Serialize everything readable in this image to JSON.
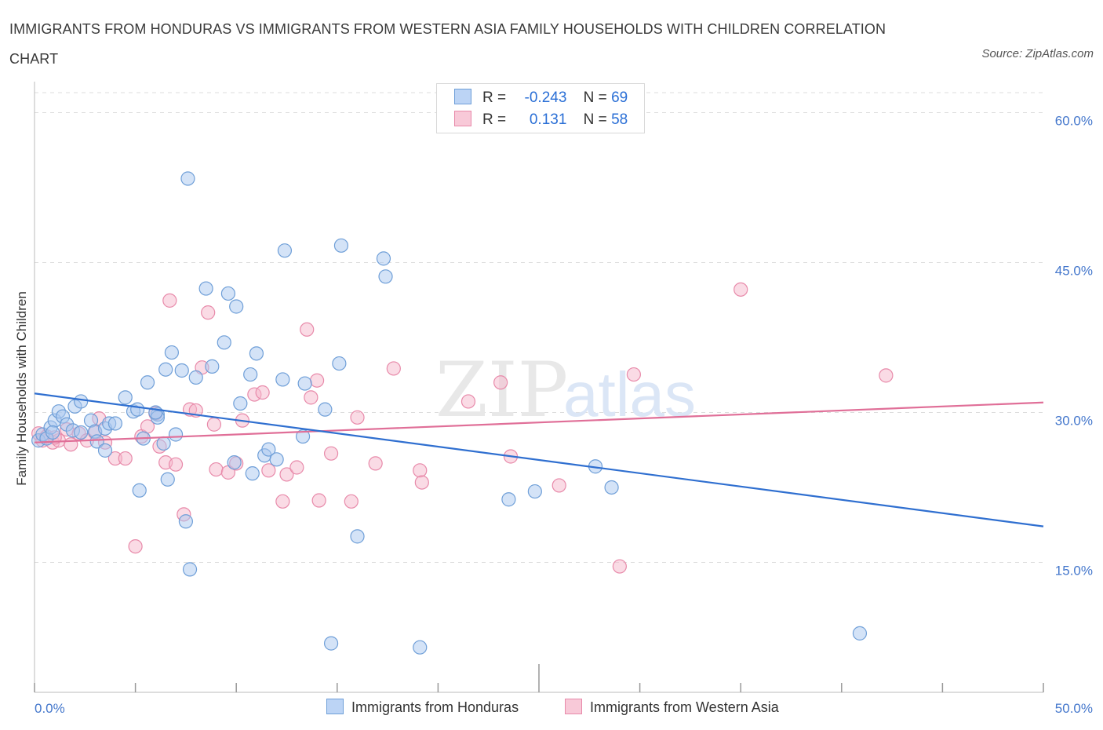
{
  "title": "IMMIGRANTS FROM HONDURAS VS IMMIGRANTS FROM WESTERN ASIA FAMILY HOUSEHOLDS WITH CHILDREN CORRELATION CHART",
  "source": "Source: ZipAtlas.com",
  "watermark": {
    "zip": "ZIP",
    "atlas": "atlas"
  },
  "legend": {
    "rows": [
      {
        "r_label": "R =",
        "r_value": "-0.243",
        "n_label": "N =",
        "n_value": "69"
      },
      {
        "r_label": "R =",
        "r_value": "0.131",
        "n_label": "N =",
        "n_value": "58"
      }
    ]
  },
  "bottom_legend": [
    "Immigrants from Honduras",
    "Immigrants from Western Asia"
  ],
  "colors": {
    "blue_fill": "#a9c8f0",
    "blue_stroke": "#6f9fd8",
    "blue_line": "#2f6fd0",
    "pink_fill": "#f5b8cc",
    "pink_stroke": "#e88aaa",
    "pink_line": "#e06f98",
    "tick_text": "#4477cc",
    "grid": "#dddddd"
  },
  "chart_data": {
    "type": "scatter",
    "title": "IMMIGRANTS FROM HONDURAS VS IMMIGRANTS FROM WESTERN ASIA FAMILY HOUSEHOLDS WITH CHILDREN CORRELATION CHART",
    "xlabel": "",
    "ylabel": "Family Households with Children",
    "xlim": [
      0,
      50
    ],
    "ylim": [
      2,
      62
    ],
    "x_tick_labels": [
      "0.0%",
      "50.0%"
    ],
    "y_ticks": [
      15,
      30,
      45,
      60
    ],
    "y_tick_labels": [
      "15.0%",
      "30.0%",
      "45.0%",
      "60.0%"
    ],
    "grid": true,
    "legend_position": "top-center",
    "series": [
      {
        "name": "Immigrants from Honduras",
        "color": "#a9c8f0",
        "R": -0.243,
        "N": 69,
        "trend": {
          "x": [
            0,
            50
          ],
          "y": [
            31.9,
            18.6
          ]
        },
        "points": [
          [
            0.2,
            27.2
          ],
          [
            0.4,
            27.8
          ],
          [
            0.6,
            27.4
          ],
          [
            0.8,
            28.5
          ],
          [
            1.0,
            29.2
          ],
          [
            1.2,
            30.1
          ],
          [
            1.4,
            29.6
          ],
          [
            1.6,
            28.8
          ],
          [
            2.0,
            30.6
          ],
          [
            2.3,
            31.1
          ],
          [
            2.8,
            29.2
          ],
          [
            3.0,
            28.1
          ],
          [
            3.5,
            28.4
          ],
          [
            3.7,
            28.9
          ],
          [
            4.5,
            31.5
          ],
          [
            4.9,
            30.1
          ],
          [
            5.1,
            30.3
          ],
          [
            5.4,
            27.4
          ],
          [
            5.6,
            33.0
          ],
          [
            6.1,
            29.8
          ],
          [
            6.1,
            29.5
          ],
          [
            6.4,
            26.9
          ],
          [
            6.5,
            34.3
          ],
          [
            6.6,
            23.3
          ],
          [
            6.8,
            36.0
          ],
          [
            7.3,
            34.2
          ],
          [
            7.5,
            19.1
          ],
          [
            7.6,
            53.4
          ],
          [
            7.7,
            14.3
          ],
          [
            8.0,
            33.5
          ],
          [
            8.5,
            42.4
          ],
          [
            8.8,
            34.6
          ],
          [
            9.4,
            37.0
          ],
          [
            9.6,
            41.9
          ],
          [
            9.9,
            25.0
          ],
          [
            10.0,
            40.6
          ],
          [
            10.2,
            30.9
          ],
          [
            10.7,
            33.8
          ],
          [
            10.8,
            23.9
          ],
          [
            11.0,
            35.9
          ],
          [
            11.4,
            25.7
          ],
          [
            11.6,
            26.3
          ],
          [
            12.0,
            25.3
          ],
          [
            12.3,
            33.3
          ],
          [
            12.4,
            46.2
          ],
          [
            13.3,
            27.6
          ],
          [
            13.4,
            32.9
          ],
          [
            14.4,
            30.3
          ],
          [
            14.7,
            6.9
          ],
          [
            15.1,
            34.9
          ],
          [
            15.2,
            46.7
          ],
          [
            16.0,
            17.6
          ],
          [
            17.3,
            45.4
          ],
          [
            17.4,
            43.6
          ],
          [
            19.1,
            6.5
          ],
          [
            23.5,
            21.3
          ],
          [
            24.8,
            22.1
          ],
          [
            27.8,
            24.6
          ],
          [
            28.6,
            22.5
          ],
          [
            40.9,
            7.9
          ],
          [
            1.9,
            28.2
          ],
          [
            3.1,
            27.1
          ],
          [
            3.5,
            26.2
          ],
          [
            5.2,
            22.2
          ],
          [
            7.0,
            27.8
          ],
          [
            2.3,
            28.0
          ],
          [
            4.0,
            28.9
          ],
          [
            6.0,
            30.0
          ],
          [
            0.9,
            28.0
          ]
        ]
      },
      {
        "name": "Immigrants from Western Asia",
        "color": "#f5b8cc",
        "R": 0.131,
        "N": 58,
        "trend": {
          "x": [
            0,
            50
          ],
          "y": [
            27.0,
            31.0
          ]
        },
        "points": [
          [
            0.2,
            27.9
          ],
          [
            0.4,
            27.2
          ],
          [
            0.6,
            27.6
          ],
          [
            0.9,
            27.0
          ],
          [
            1.2,
            27.2
          ],
          [
            1.6,
            28.3
          ],
          [
            1.8,
            26.8
          ],
          [
            2.2,
            27.9
          ],
          [
            2.6,
            27.2
          ],
          [
            3.0,
            28.0
          ],
          [
            3.2,
            29.4
          ],
          [
            3.5,
            27.0
          ],
          [
            4.0,
            25.4
          ],
          [
            4.5,
            25.4
          ],
          [
            5.0,
            16.6
          ],
          [
            5.3,
            27.6
          ],
          [
            5.6,
            28.6
          ],
          [
            6.0,
            29.9
          ],
          [
            6.2,
            26.6
          ],
          [
            6.5,
            25.0
          ],
          [
            6.7,
            41.2
          ],
          [
            7.0,
            24.8
          ],
          [
            7.4,
            19.8
          ],
          [
            7.7,
            30.3
          ],
          [
            8.0,
            30.2
          ],
          [
            8.3,
            34.5
          ],
          [
            8.6,
            40.0
          ],
          [
            8.9,
            28.8
          ],
          [
            9.0,
            24.3
          ],
          [
            9.6,
            24.0
          ],
          [
            10.0,
            24.9
          ],
          [
            10.3,
            29.2
          ],
          [
            10.9,
            31.8
          ],
          [
            11.3,
            32.0
          ],
          [
            11.6,
            24.2
          ],
          [
            12.3,
            21.1
          ],
          [
            12.5,
            23.8
          ],
          [
            13.0,
            24.5
          ],
          [
            13.5,
            38.3
          ],
          [
            13.7,
            31.5
          ],
          [
            14.0,
            33.2
          ],
          [
            14.1,
            21.2
          ],
          [
            14.7,
            25.9
          ],
          [
            15.7,
            21.1
          ],
          [
            16.0,
            29.5
          ],
          [
            16.9,
            24.9
          ],
          [
            17.8,
            34.4
          ],
          [
            19.1,
            24.2
          ],
          [
            19.2,
            23.0
          ],
          [
            21.5,
            31.1
          ],
          [
            23.1,
            33.0
          ],
          [
            23.6,
            25.6
          ],
          [
            26.0,
            22.7
          ],
          [
            29.0,
            14.6
          ],
          [
            29.7,
            33.8
          ],
          [
            35.0,
            42.3
          ],
          [
            42.2,
            33.7
          ],
          [
            1.0,
            27.5
          ]
        ]
      }
    ]
  }
}
